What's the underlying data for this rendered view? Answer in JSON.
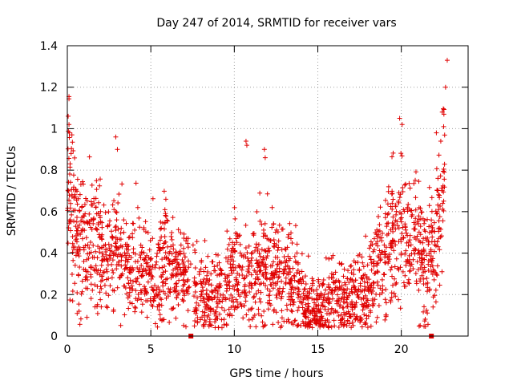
{
  "chart_data": {
    "type": "scatter",
    "title": "Day 247 of 2014, SRMTID for receiver vars",
    "xlabel": "GPS time / hours",
    "ylabel": "SRMTID / TECUs",
    "xlim": [
      0,
      24
    ],
    "ylim": [
      0,
      1.4
    ],
    "xticks": [
      0,
      5,
      10,
      15,
      20
    ],
    "yticks": [
      0,
      0.2,
      0.4,
      0.6,
      0.8,
      1,
      1.2,
      1.4
    ],
    "ytick_labels": [
      "0",
      "0.2",
      "0.4",
      "0.6",
      "0.8",
      "1",
      "1.2",
      "1.4"
    ],
    "grid": true,
    "marker": "+",
    "color": "#e00000",
    "series": [
      {
        "name": "SRMTID",
        "profile": [
          [
            0.0,
            0.6
          ],
          [
            0.1,
            0.85
          ],
          [
            0.3,
            0.55
          ],
          [
            0.6,
            0.5
          ],
          [
            1.0,
            0.48
          ],
          [
            1.5,
            0.45
          ],
          [
            2.0,
            0.42
          ],
          [
            2.5,
            0.4
          ],
          [
            3.0,
            0.45
          ],
          [
            3.5,
            0.35
          ],
          [
            4.0,
            0.33
          ],
          [
            4.5,
            0.3
          ],
          [
            5.0,
            0.28
          ],
          [
            5.5,
            0.26
          ],
          [
            5.9,
            0.45
          ],
          [
            6.2,
            0.3
          ],
          [
            6.5,
            0.27
          ],
          [
            7.0,
            0.28
          ],
          [
            7.5,
            0.25
          ],
          [
            8.0,
            0.2
          ],
          [
            8.5,
            0.16
          ],
          [
            9.0,
            0.18
          ],
          [
            9.5,
            0.22
          ],
          [
            10.0,
            0.3
          ],
          [
            10.5,
            0.26
          ],
          [
            11.0,
            0.28
          ],
          [
            11.5,
            0.35
          ],
          [
            12.0,
            0.32
          ],
          [
            12.5,
            0.3
          ],
          [
            13.0,
            0.32
          ],
          [
            13.5,
            0.26
          ],
          [
            14.0,
            0.18
          ],
          [
            14.5,
            0.13
          ],
          [
            15.0,
            0.12
          ],
          [
            15.5,
            0.16
          ],
          [
            16.0,
            0.2
          ],
          [
            16.5,
            0.16
          ],
          [
            17.0,
            0.18
          ],
          [
            17.5,
            0.2
          ],
          [
            18.0,
            0.22
          ],
          [
            18.5,
            0.32
          ],
          [
            19.0,
            0.4
          ],
          [
            19.5,
            0.48
          ],
          [
            20.0,
            0.5
          ],
          [
            20.5,
            0.45
          ],
          [
            21.0,
            0.4
          ],
          [
            21.5,
            0.35
          ],
          [
            22.0,
            0.42
          ],
          [
            22.3,
            0.55
          ],
          [
            22.6,
            0.7
          ]
        ],
        "outliers": [
          [
            0.05,
            1.06
          ],
          [
            0.1,
            1.02
          ],
          [
            0.12,
            0.98
          ],
          [
            2.9,
            0.96
          ],
          [
            3.0,
            0.9
          ],
          [
            10.7,
            0.94
          ],
          [
            10.75,
            0.92
          ],
          [
            11.8,
            0.9
          ],
          [
            11.85,
            0.86
          ],
          [
            11.8,
            0.05
          ],
          [
            0.7,
            0.12
          ],
          [
            19.9,
            1.05
          ],
          [
            20.05,
            1.02
          ],
          [
            22.45,
            1.08
          ],
          [
            22.55,
            1.07
          ],
          [
            22.65,
            1.2
          ],
          [
            22.75,
            1.33
          ],
          [
            22.1,
            0.98
          ],
          [
            21.9,
            0.14
          ],
          [
            5.9,
            0.66
          ]
        ],
        "edge_markers": [
          7.4,
          21.8
        ]
      }
    ]
  }
}
